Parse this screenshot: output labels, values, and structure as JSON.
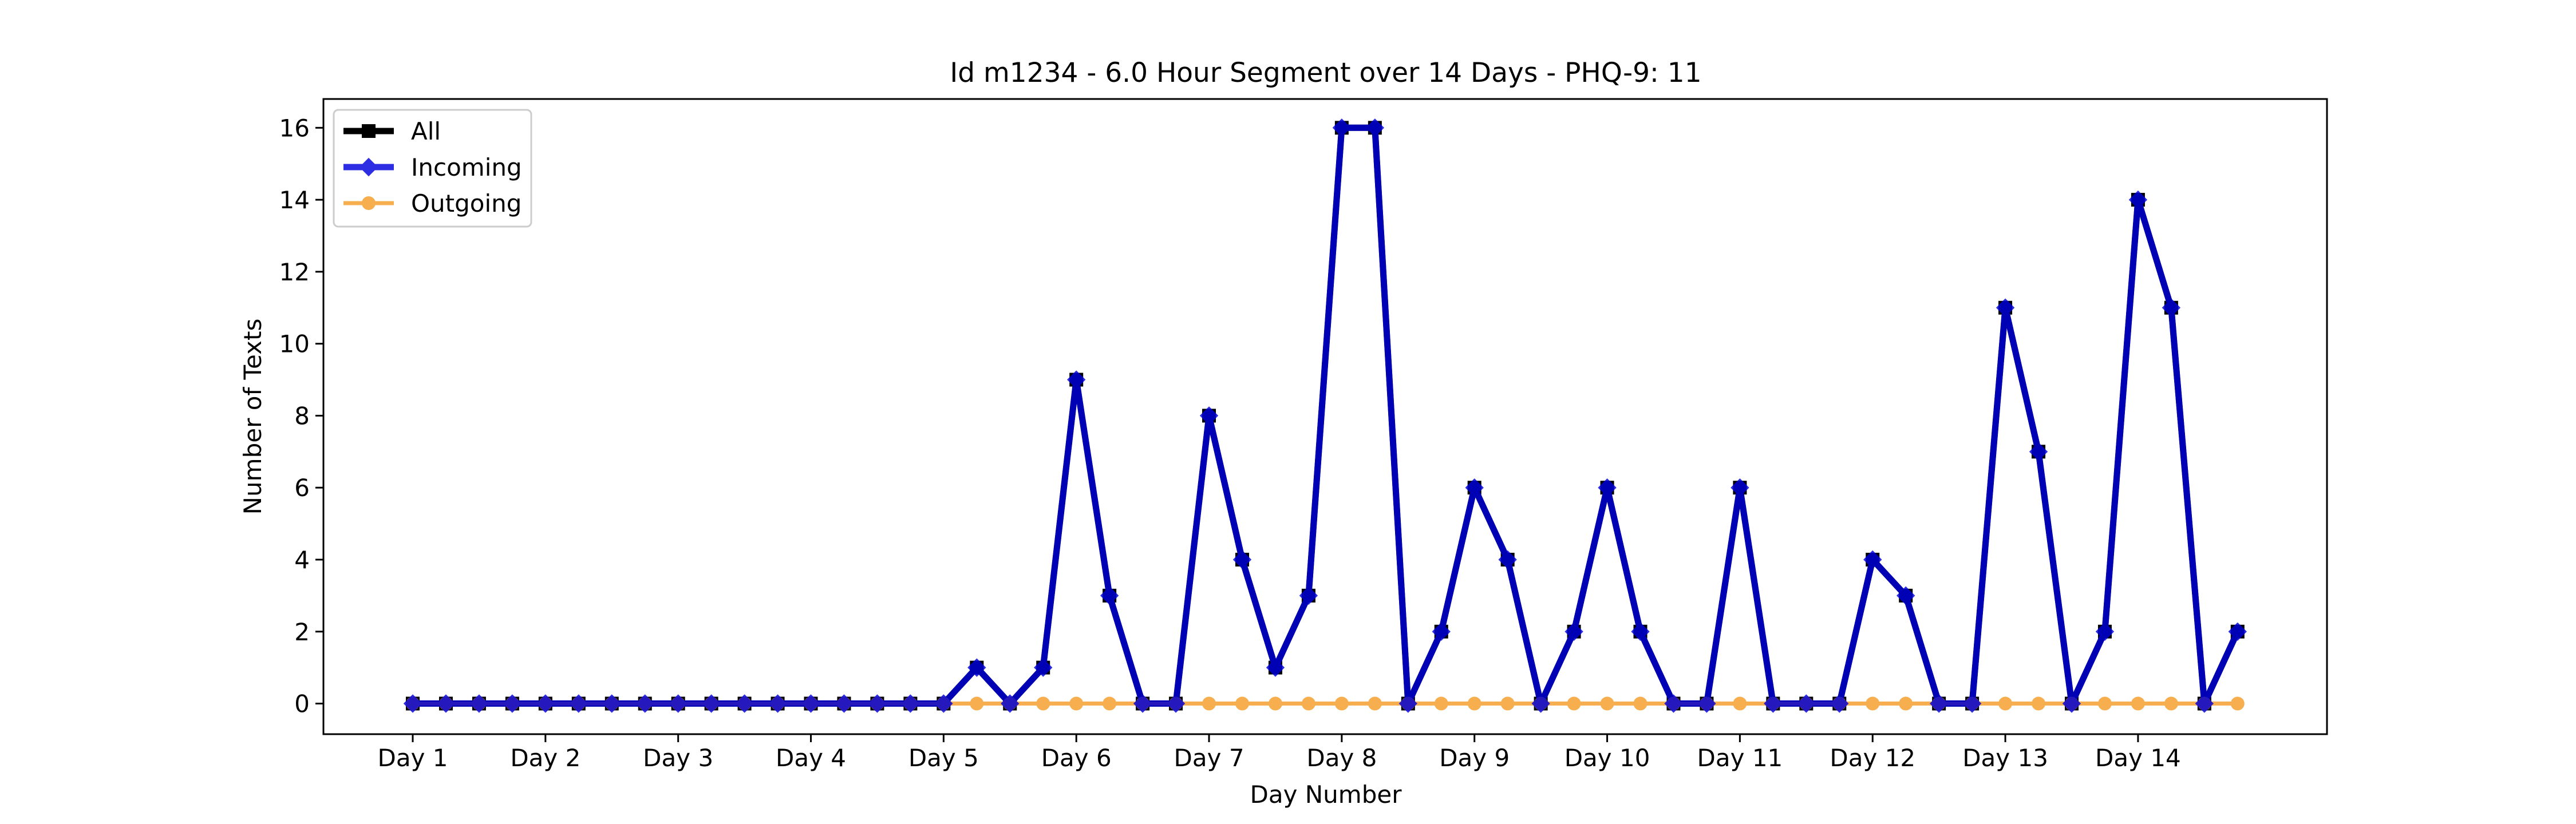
{
  "chart_data": {
    "type": "line",
    "title": "Id m1234 - 6.0 Hour Segment over 14 Days - PHQ-9: 11",
    "xlabel": "Day Number",
    "ylabel": "Number of Texts",
    "ylim": [
      -0.85,
      16.8
    ],
    "yticks": [
      0,
      2,
      4,
      6,
      8,
      10,
      12,
      14,
      16
    ],
    "xticks": [
      {
        "x": 0,
        "label": "Day 1"
      },
      {
        "x": 4,
        "label": "Day 2"
      },
      {
        "x": 8,
        "label": "Day 3"
      },
      {
        "x": 12,
        "label": "Day 4"
      },
      {
        "x": 16,
        "label": "Day 5"
      },
      {
        "x": 20,
        "label": "Day 6"
      },
      {
        "x": 24,
        "label": "Day 7"
      },
      {
        "x": 28,
        "label": "Day 8"
      },
      {
        "x": 32,
        "label": "Day 9"
      },
      {
        "x": 36,
        "label": "Day 10"
      },
      {
        "x": 40,
        "label": "Day 11"
      },
      {
        "x": 44,
        "label": "Day 12"
      },
      {
        "x": 48,
        "label": "Day 13"
      },
      {
        "x": 52,
        "label": "Day 14"
      }
    ],
    "grid": false,
    "legend_position": "upper-left",
    "series": [
      {
        "name": "All",
        "color": "#000000",
        "marker": "square",
        "values": [
          0,
          0,
          0,
          0,
          0,
          0,
          0,
          0,
          0,
          0,
          0,
          0,
          0,
          0,
          0,
          0,
          0,
          1,
          0,
          1,
          9,
          3,
          0,
          0,
          8,
          4,
          1,
          3,
          16,
          16,
          0,
          2,
          6,
          4,
          0,
          2,
          6,
          2,
          0,
          0,
          6,
          0,
          0,
          0,
          4,
          3,
          0,
          0,
          11,
          7,
          0,
          2,
          14,
          11,
          0,
          2
        ]
      },
      {
        "name": "Incoming",
        "color": "#0000dd",
        "marker": "diamond",
        "values": [
          0,
          0,
          0,
          0,
          0,
          0,
          0,
          0,
          0,
          0,
          0,
          0,
          0,
          0,
          0,
          0,
          0,
          1,
          0,
          1,
          9,
          3,
          0,
          0,
          8,
          4,
          1,
          3,
          16,
          16,
          0,
          2,
          6,
          4,
          0,
          2,
          6,
          2,
          0,
          0,
          6,
          0,
          0,
          0,
          4,
          3,
          0,
          0,
          11,
          7,
          0,
          2,
          14,
          11,
          0,
          2
        ]
      },
      {
        "name": "Outgoing",
        "color": "#f5a030",
        "marker": "circle",
        "values": [
          0,
          0,
          0,
          0,
          0,
          0,
          0,
          0,
          0,
          0,
          0,
          0,
          0,
          0,
          0,
          0,
          0,
          0,
          0,
          0,
          0,
          0,
          0,
          0,
          0,
          0,
          0,
          0,
          0,
          0,
          0,
          0,
          0,
          0,
          0,
          0,
          0,
          0,
          0,
          0,
          0,
          0,
          0,
          0,
          0,
          0,
          0,
          0,
          0,
          0,
          0,
          0,
          0,
          0,
          0,
          0
        ]
      }
    ]
  }
}
